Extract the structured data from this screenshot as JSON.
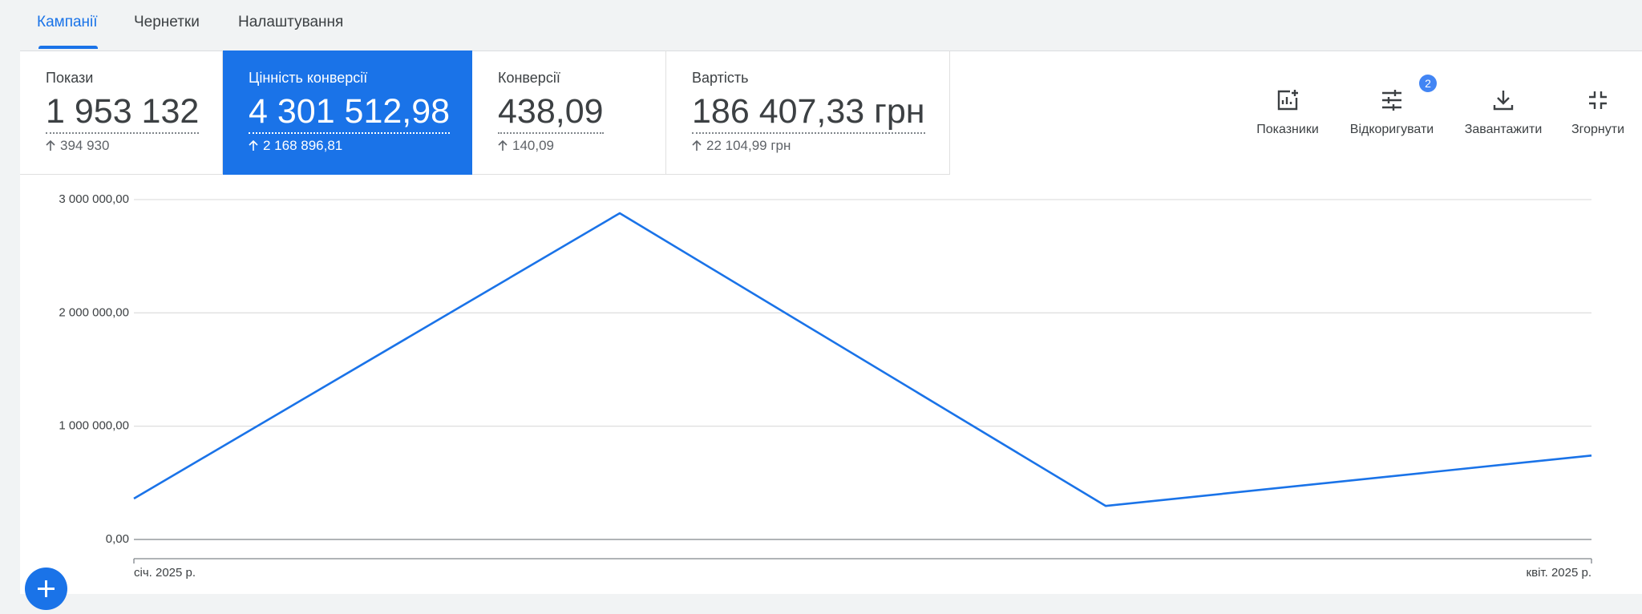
{
  "tabs": [
    "Кампанії",
    "Чернетки",
    "Налаштування"
  ],
  "metrics": [
    {
      "label": "Покази",
      "value": "1 953 132",
      "change": "394 930"
    },
    {
      "label": "Цінність конверсії",
      "value": "4 301 512,98",
      "change": "2 168 896,81"
    },
    {
      "label": "Конверсії",
      "value": "438,09",
      "change": "140,09"
    },
    {
      "label": "Вартість",
      "value": "186 407,33 грн",
      "change": "22 104,99 грн"
    }
  ],
  "toolbar": [
    "Показники",
    "Відкоригувати",
    "Завантажити",
    "Згорнути"
  ],
  "badge": "2",
  "chart_data": {
    "type": "line",
    "categories": [
      "січ. 2025 р.",
      null,
      null,
      "квіт. 2025 р."
    ],
    "series": [
      {
        "color": "#1a73e8",
        "values": [
          361000,
          2880000,
          296000,
          741000
        ]
      }
    ],
    "ylim": [
      0,
      3000000
    ],
    "yticks": [
      {
        "value": 0,
        "label": "0,00"
      },
      {
        "value": 1000000,
        "label": "1 000 000,00"
      },
      {
        "value": 2000000,
        "label": "2 000 000,00"
      },
      {
        "value": 3000000,
        "label": "3 000 000,00"
      }
    ],
    "grid": true
  }
}
